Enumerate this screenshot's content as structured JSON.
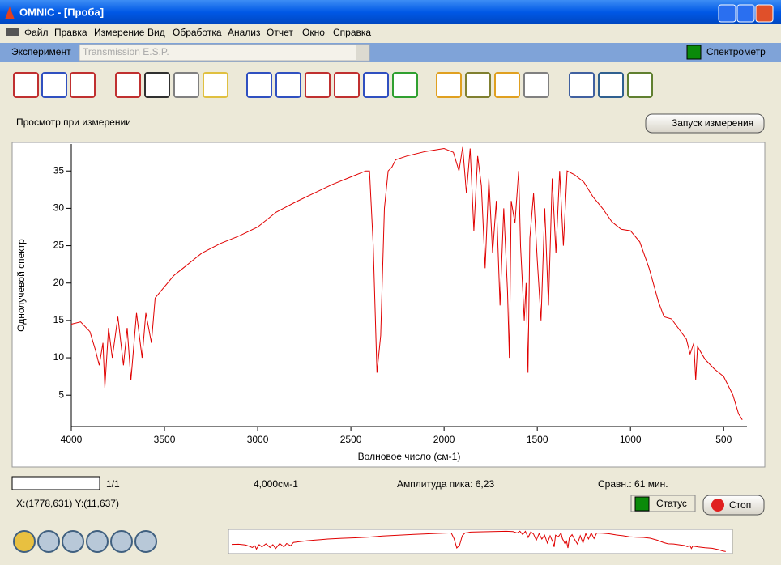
{
  "window": {
    "title": "OMNIC - [Проба]"
  },
  "menu": [
    "Файл",
    "Правка",
    "Измерение",
    "Вид",
    "Обработка",
    "Анализ",
    "Отчет",
    "Окно",
    "Справка"
  ],
  "experiment": {
    "label": "Эксперимент",
    "value": "Transmission E.S.P.",
    "spectrometer": "Спектрометр"
  },
  "view_label": "Просмотр при измерении",
  "start_button": "Запуск измерения",
  "status": {
    "count": "1/1",
    "resolution": "4,000см-1",
    "peak": "Амплитуда пика: 6,23",
    "compare": "Сравн.: 61 мин.",
    "cursor": "X:(1778,631) Y:(11,637)",
    "status_label": "Статус",
    "stop_button": "Стоп"
  },
  "chart_data": {
    "type": "line",
    "x_label": "Волновое число (см-1)",
    "y_label": "Однолучевой спектр",
    "xlim": [
      4000,
      375
    ],
    "ylim": [
      0.8,
      38.6
    ],
    "xticks": [
      4000,
      3500,
      3000,
      2500,
      2000,
      1500,
      1000,
      500
    ],
    "yticks": [
      5,
      10,
      15,
      20,
      25,
      30,
      35
    ],
    "series": [
      {
        "color": "#e00000",
        "x": [
          4000,
          3950,
          3900,
          3870,
          3850,
          3830,
          3820,
          3800,
          3780,
          3750,
          3720,
          3700,
          3680,
          3650,
          3620,
          3600,
          3570,
          3550,
          3500,
          3450,
          3400,
          3350,
          3300,
          3200,
          3100,
          3000,
          2900,
          2800,
          2700,
          2600,
          2500,
          2420,
          2400,
          2380,
          2360,
          2340,
          2320,
          2300,
          2280,
          2260,
          2200,
          2100,
          2000,
          1950,
          1920,
          1900,
          1880,
          1860,
          1840,
          1820,
          1800,
          1780,
          1760,
          1740,
          1720,
          1700,
          1680,
          1660,
          1650,
          1640,
          1620,
          1600,
          1590,
          1570,
          1560,
          1550,
          1540,
          1520,
          1500,
          1480,
          1460,
          1440,
          1420,
          1400,
          1380,
          1360,
          1340,
          1300,
          1250,
          1200,
          1150,
          1100,
          1050,
          1000,
          950,
          900,
          850,
          820,
          780,
          700,
          680,
          660,
          650,
          640,
          600,
          550,
          500,
          450,
          420,
          400
        ],
        "values": [
          14.5,
          14.8,
          13.5,
          11,
          9,
          12,
          6,
          14,
          10,
          15.5,
          9,
          14,
          7,
          16,
          10,
          16,
          12,
          18,
          19.5,
          21,
          22,
          23,
          24,
          25.3,
          26.3,
          27.5,
          29.5,
          30.8,
          32,
          33.2,
          34.2,
          35,
          35,
          25,
          8,
          13,
          30,
          35,
          35.5,
          36.5,
          37,
          37.6,
          38,
          37.5,
          35,
          38.2,
          32,
          38,
          27,
          37,
          33,
          22,
          34,
          24,
          31,
          17,
          30,
          19,
          10,
          31,
          28,
          35,
          25,
          15,
          20,
          8,
          26,
          32,
          23,
          15,
          30,
          17,
          34,
          24,
          35,
          25,
          35,
          34.5,
          33.5,
          31.5,
          30,
          28.2,
          27.2,
          27,
          25.5,
          22,
          17.5,
          15.5,
          15.2,
          12.5,
          10.5,
          12,
          7,
          11.5,
          9.8,
          8.5,
          7.5,
          5,
          2.5,
          1.7
        ]
      }
    ]
  }
}
